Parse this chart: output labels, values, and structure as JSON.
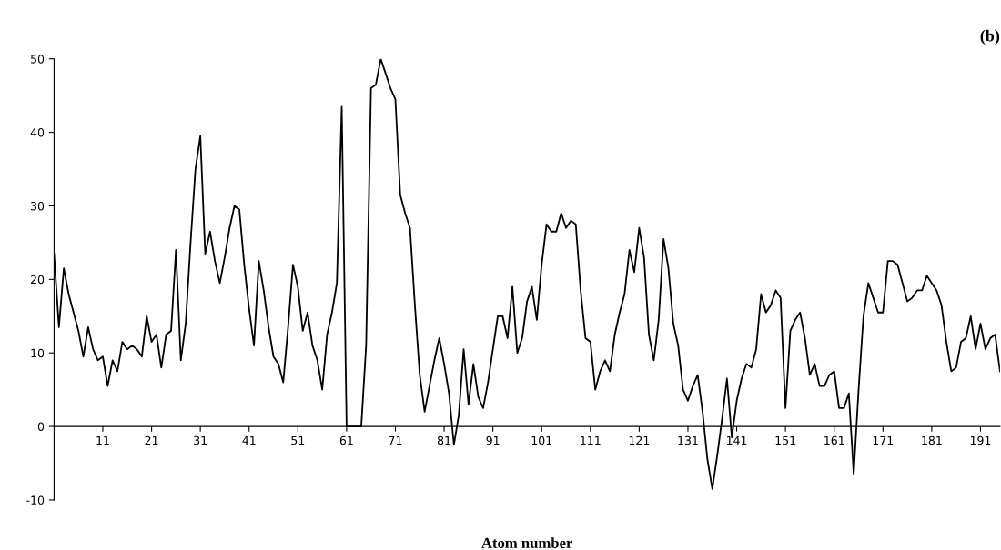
{
  "chart_data": {
    "type": "line",
    "title": "(b)",
    "xlabel": "Atom number",
    "x": [
      1,
      2,
      3,
      4,
      5,
      6,
      7,
      8,
      9,
      10,
      11,
      12,
      13,
      14,
      15,
      16,
      17,
      18,
      19,
      20,
      21,
      22,
      23,
      24,
      25,
      26,
      27,
      28,
      29,
      30,
      31,
      32,
      33,
      34,
      35,
      36,
      37,
      38,
      39,
      40,
      41,
      42,
      43,
      44,
      45,
      46,
      47,
      48,
      49,
      50,
      51,
      52,
      53,
      54,
      55,
      56,
      57,
      58,
      59,
      60,
      61,
      62,
      63,
      64,
      65,
      66,
      67,
      68,
      69,
      70,
      71,
      72,
      73,
      74,
      75,
      76,
      77,
      78,
      79,
      80,
      81,
      82,
      83,
      84,
      85,
      86,
      87,
      88,
      89,
      90,
      91,
      92,
      93,
      94,
      95,
      96,
      97,
      98,
      99,
      100,
      101,
      102,
      103,
      104,
      105,
      106,
      107,
      108,
      109,
      110,
      111,
      112,
      113,
      114,
      115,
      116,
      117,
      118,
      119,
      120,
      121,
      122,
      123,
      124,
      125,
      126,
      127,
      128,
      129,
      130,
      131,
      132,
      133,
      134,
      135,
      136,
      137,
      138,
      139,
      140,
      141,
      142,
      143,
      144,
      145,
      146,
      147,
      148,
      149,
      150,
      151,
      152,
      153,
      154,
      155,
      156,
      157,
      158,
      159,
      160,
      161,
      162,
      163,
      164,
      165,
      166,
      167,
      168,
      169,
      170,
      171,
      172,
      173,
      174,
      175,
      176,
      177,
      178,
      179,
      180,
      181,
      182,
      183,
      184,
      185,
      186,
      187,
      188,
      189,
      190,
      191,
      192,
      193,
      194,
      195
    ],
    "series": [
      {
        "color": "#000000",
        "values": [
          23.5,
          13.5,
          21.5,
          18,
          15.5,
          13,
          9.5,
          13.5,
          10.5,
          9,
          9.5,
          5.5,
          9,
          7.5,
          11.5,
          10.5,
          11,
          10.5,
          9.5,
          15,
          11.5,
          12.5,
          8,
          12.5,
          13,
          24,
          9,
          14,
          25,
          35,
          39.5,
          23.5,
          26.5,
          22.5,
          19.5,
          23,
          27,
          30,
          29.5,
          22,
          16,
          11,
          22.5,
          18.5,
          13.5,
          9.5,
          8.5,
          6,
          13.5,
          22,
          19,
          13,
          15.5,
          11,
          9,
          5,
          12.5,
          15.5,
          19.5,
          43.5,
          0,
          0,
          0,
          0,
          11,
          46,
          46.5,
          50,
          48,
          46,
          44.5,
          31.5,
          29,
          27,
          16.5,
          7,
          2,
          5.5,
          9,
          12,
          8.5,
          4.5,
          -2.5,
          1.5,
          10.5,
          3,
          8.5,
          4,
          2.5,
          6,
          10.5,
          15,
          15,
          12,
          19,
          10,
          12,
          17,
          19,
          14.5,
          22,
          27.5,
          26.5,
          26.5,
          29,
          27,
          28,
          27.5,
          18.5,
          12,
          11.5,
          5,
          7.5,
          9,
          7.5,
          12.5,
          15.5,
          18,
          24,
          21,
          27,
          23,
          12.5,
          9,
          14.5,
          25.5,
          21.5,
          14,
          11,
          5,
          3.5,
          5.5,
          7,
          2,
          -4.5,
          -8.5,
          -4,
          1,
          6.5,
          -1.5,
          3.5,
          6.5,
          8.5,
          8,
          10.5,
          18,
          15.5,
          16.5,
          18.5,
          17.5,
          2.5,
          13,
          14.5,
          15.5,
          12,
          7,
          8.5,
          5.5,
          5.5,
          7,
          7.5,
          2.5,
          2.5,
          4.5,
          -6.5,
          5,
          15,
          19.5,
          17.5,
          15.5,
          15.5,
          22.5,
          22.5,
          22,
          19.5,
          17,
          17.5,
          18.5,
          18.5,
          20.5,
          19.5,
          18.5,
          16.5,
          11.5,
          7.5,
          8,
          11.5,
          12,
          15,
          10.5,
          14,
          10.5,
          12,
          12.5,
          7.5
        ]
      }
    ],
    "xlim": [
      1,
      195
    ],
    "xticks": [
      11,
      21,
      31,
      41,
      51,
      61,
      71,
      81,
      91,
      101,
      111,
      121,
      131,
      141,
      151,
      161,
      171,
      181,
      191
    ],
    "ylim": [
      -10,
      50
    ],
    "yticks": [
      -10,
      0,
      10,
      20,
      30,
      40,
      50
    ],
    "grid": false,
    "legend": false,
    "marker": "none",
    "line_style": "solid"
  }
}
